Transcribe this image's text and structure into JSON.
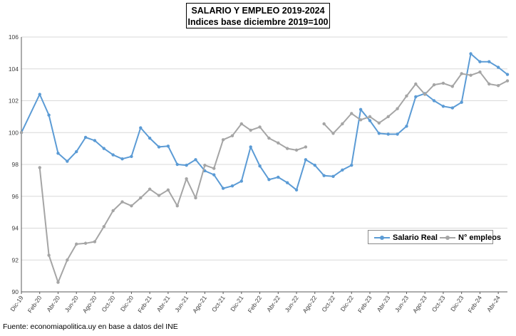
{
  "title_line1": "SALARIO Y EMPLEO 2019-2024",
  "title_line2": "Indices base diciembre 2019=100",
  "source": "Fuente: economiapolitica.uy en base a datos del INE",
  "colors": {
    "salario": "#5b9bd5",
    "empleo": "#a5a5a5",
    "grid": "#d9d9d9",
    "axis": "#595959"
  },
  "chart_data": {
    "type": "line",
    "title": "SALARIO Y EMPLEO 2019-2024",
    "subtitle": "Indices base diciembre 2019=100",
    "xlabel": "",
    "ylabel": "",
    "ylim": [
      90,
      106
    ],
    "yticks": [
      90,
      92,
      94,
      96,
      98,
      100,
      102,
      104,
      106
    ],
    "grid": true,
    "legend_position": "bottom-right",
    "x_tick_labels": [
      "Dic-19",
      "Feb-20",
      "Abr-20",
      "Jun-20",
      "Ago-20",
      "Oct-20",
      "Dic-20",
      "Feb-21",
      "Abr-21",
      "Jun-21",
      "Ago-21",
      "Oct-21",
      "Dic-21",
      "Feb-22",
      "Abr-22",
      "Jun-22",
      "Ago-22",
      "Oct-22",
      "Dic-22",
      "Feb-23",
      "Abr-23",
      "Jun-23",
      "Ago-23",
      "Oct-23",
      "Dic-23",
      "Feb-24",
      "Abr-24"
    ],
    "x": [
      "Dic-19",
      "Ene-20",
      "Feb-20",
      "Mar-20",
      "Abr-20",
      "May-20",
      "Jun-20",
      "Jul-20",
      "Ago-20",
      "Sep-20",
      "Oct-20",
      "Nov-20",
      "Dic-20",
      "Ene-21",
      "Feb-21",
      "Mar-21",
      "Abr-21",
      "May-21",
      "Jun-21",
      "Jul-21",
      "Ago-21",
      "Sep-21",
      "Oct-21",
      "Nov-21",
      "Dic-21",
      "Ene-22",
      "Feb-22",
      "Mar-22",
      "Abr-22",
      "May-22",
      "Jun-22",
      "Jul-22",
      "Ago-22",
      "Sep-22",
      "Oct-22",
      "Nov-22",
      "Dic-22",
      "Ene-23",
      "Feb-23",
      "Mar-23",
      "Abr-23",
      "May-23",
      "Jun-23",
      "Jul-23",
      "Ago-23",
      "Sep-23",
      "Oct-23",
      "Nov-23",
      "Dic-23",
      "Ene-24",
      "Feb-24",
      "Mar-24",
      "Abr-24",
      "May-24"
    ],
    "series": [
      {
        "name": "Salario Real",
        "values": [
          100,
          null,
          102.4,
          101.1,
          98.7,
          98.2,
          98.8,
          99.7,
          99.5,
          99.0,
          98.6,
          98.35,
          98.5,
          100.3,
          99.65,
          99.1,
          99.15,
          98.0,
          97.95,
          98.3,
          97.6,
          97.35,
          96.5,
          96.65,
          96.95,
          99.1,
          97.9,
          97.05,
          97.2,
          96.85,
          96.4,
          98.3,
          97.95,
          97.3,
          97.25,
          97.65,
          97.95,
          101.45,
          100.75,
          99.95,
          99.9,
          99.9,
          100.4,
          102.25,
          102.45,
          102.0,
          101.65,
          101.55,
          101.9,
          104.95,
          104.45,
          104.45,
          104.1,
          103.65
        ]
      },
      {
        "name": "N° empleos",
        "values": [
          100,
          null,
          97.8,
          92.3,
          90.6,
          92.0,
          93.0,
          93.05,
          93.15,
          94.1,
          95.1,
          95.65,
          95.4,
          95.9,
          96.45,
          96.05,
          96.4,
          95.4,
          97.1,
          95.9,
          97.95,
          97.75,
          99.55,
          99.8,
          100.55,
          100.15,
          100.35,
          99.65,
          99.35,
          99.0,
          98.9,
          99.1,
          null,
          100.55,
          99.95,
          100.55,
          101.2,
          100.8,
          101.0,
          100.6,
          101.0,
          101.5,
          102.3,
          103.05,
          102.4,
          103.0,
          103.1,
          102.9,
          103.7,
          103.6,
          103.8,
          103.05,
          102.95,
          103.25
        ]
      }
    ]
  }
}
